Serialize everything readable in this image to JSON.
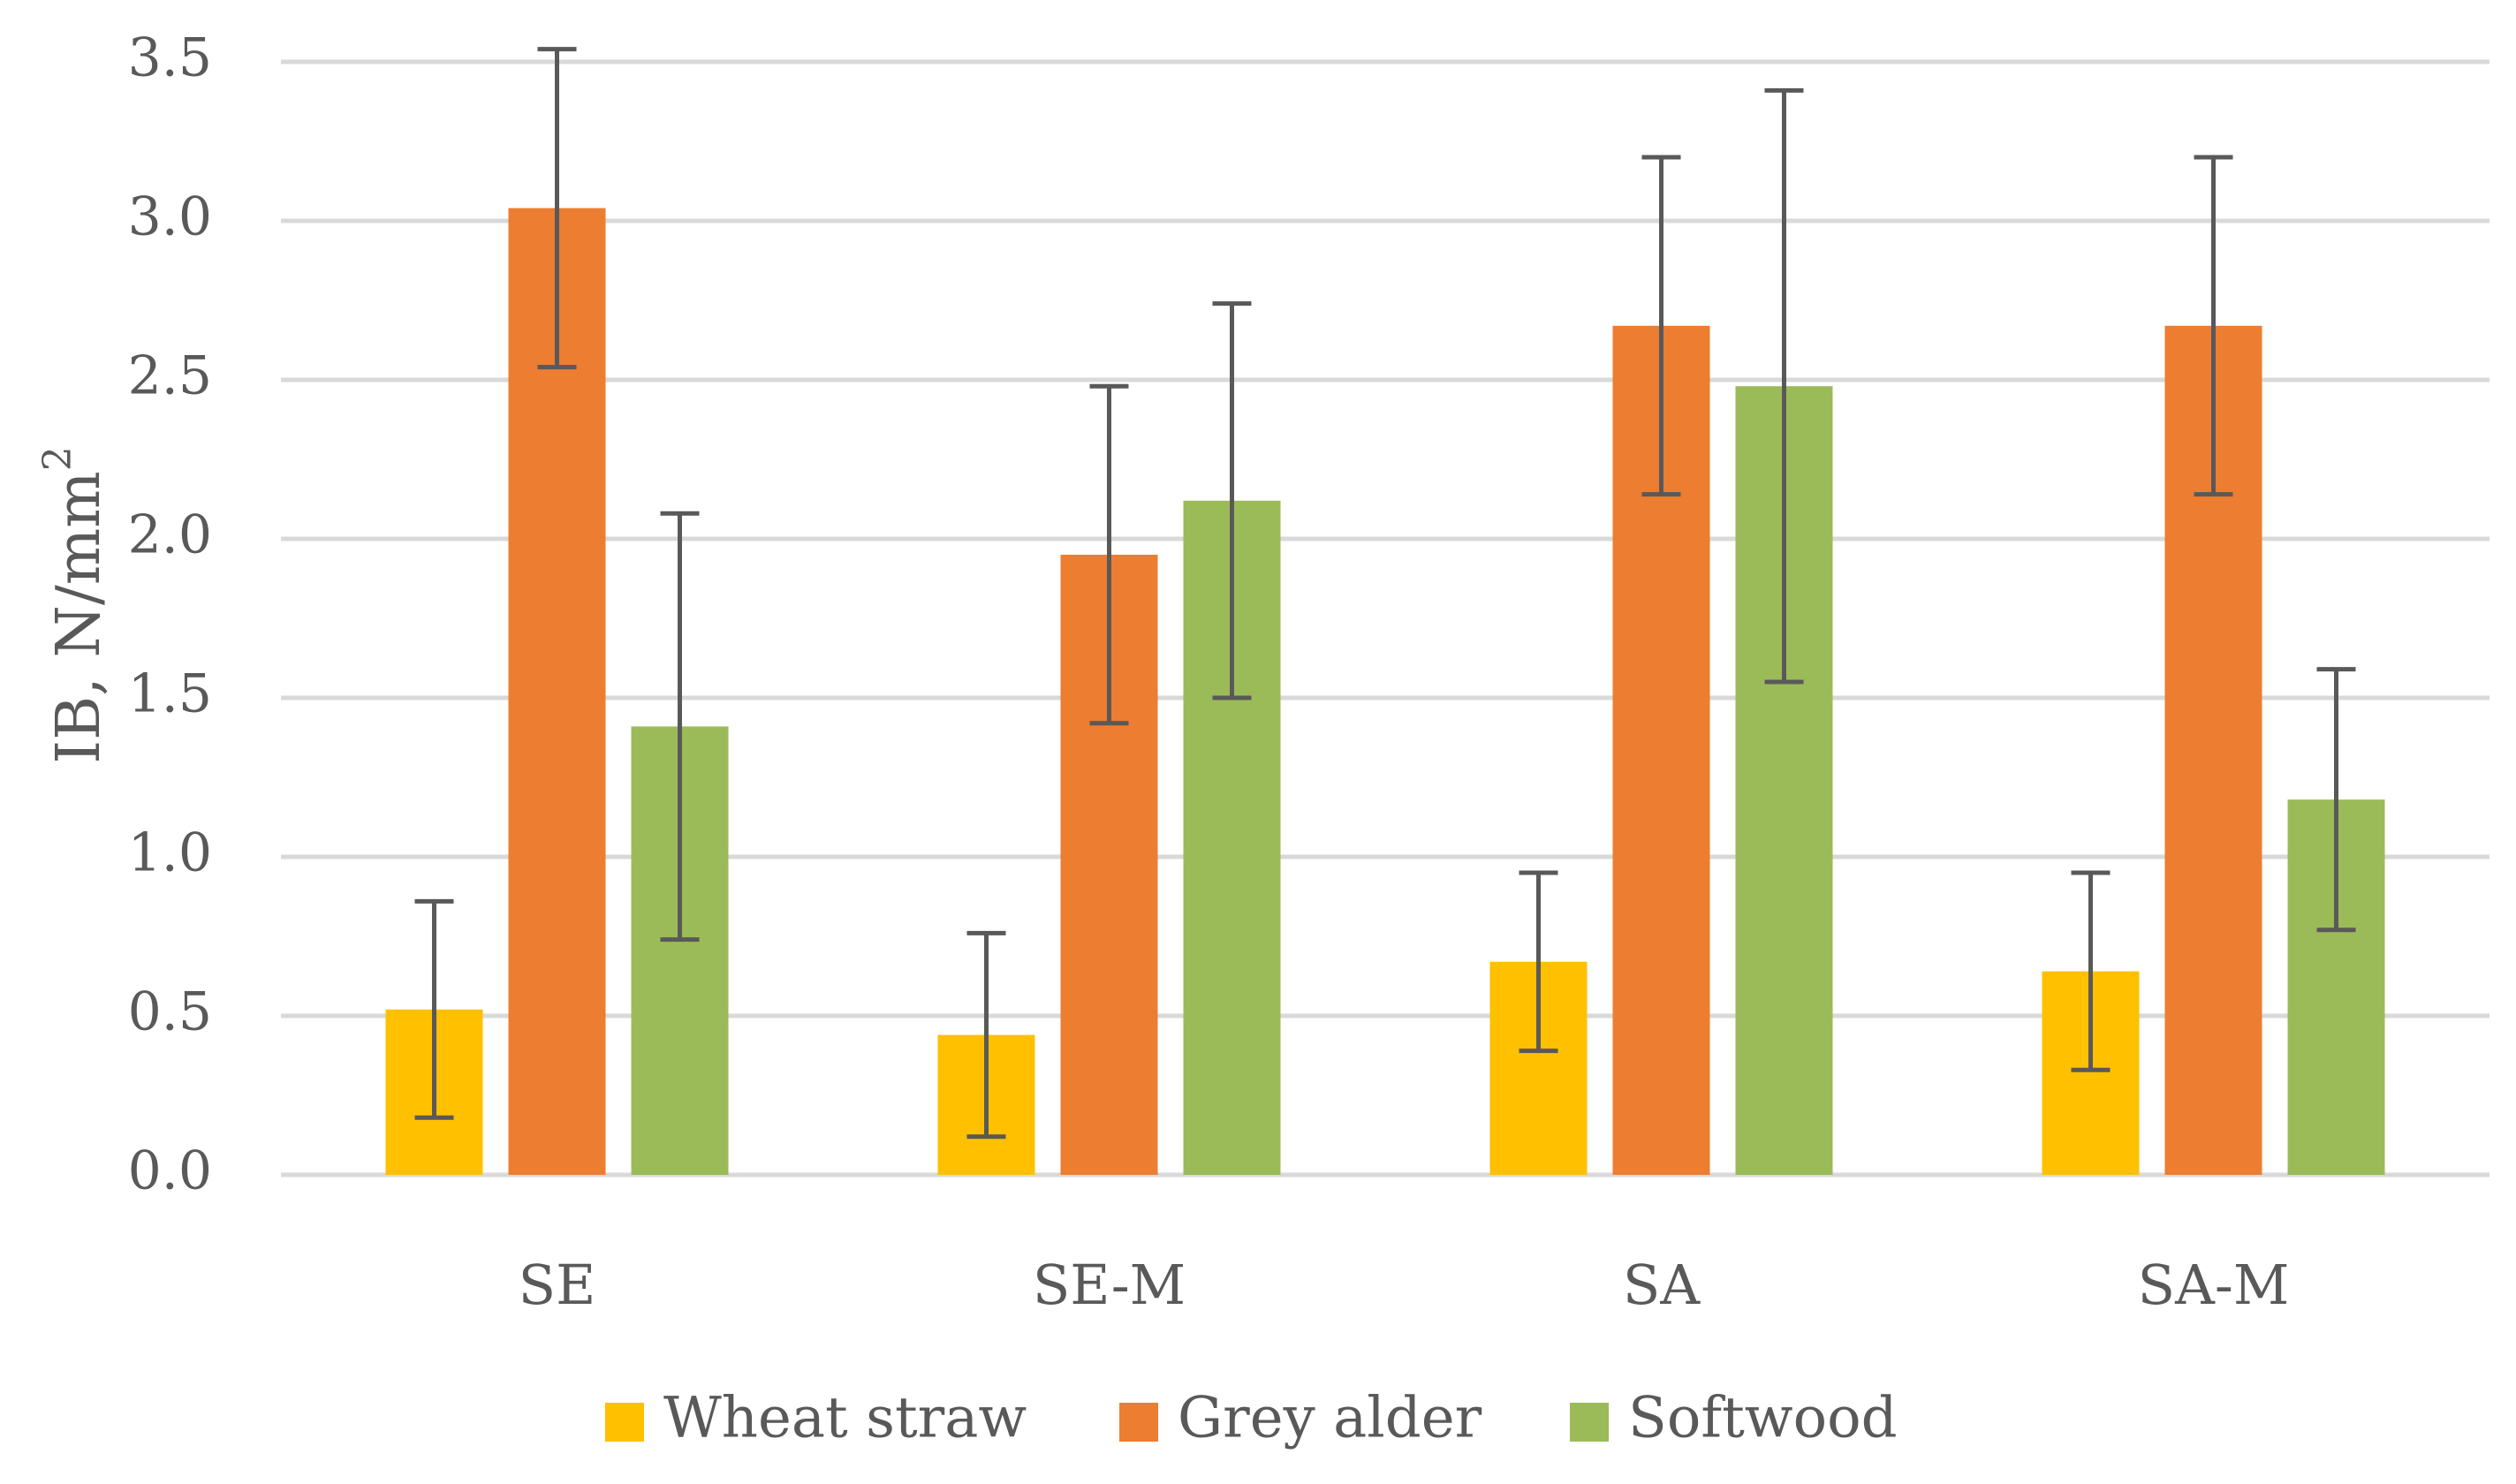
{
  "chart_data": {
    "type": "bar",
    "title": "",
    "xlabel": "",
    "ylabel": "IB, N/mm",
    "ylabel_superscript": "2",
    "ylim": [
      0,
      3.5
    ],
    "yticks": [
      "0.0",
      "0.5",
      "1.0",
      "1.5",
      "2.0",
      "2.5",
      "3.0",
      "3.5"
    ],
    "ytick_values": [
      0,
      0.5,
      1.0,
      1.5,
      2.0,
      2.5,
      3.0,
      3.5
    ],
    "grid": true,
    "legend_position": "bottom",
    "categories": [
      "SE",
      "SE-M",
      "SA",
      "SA-M"
    ],
    "series": [
      {
        "name": "Wheat straw",
        "color": "#FFC000",
        "values": [
          0.52,
          0.44,
          0.67,
          0.64
        ],
        "errors": [
          0.34,
          0.32,
          0.28,
          0.31
        ]
      },
      {
        "name": "Grey alder",
        "color": "#ED7D31",
        "values": [
          3.04,
          1.95,
          2.67,
          2.67
        ],
        "errors": [
          0.5,
          0.53,
          0.53,
          0.53
        ]
      },
      {
        "name": "Softwood",
        "color": "#9BBB59",
        "values": [
          1.41,
          2.12,
          2.48,
          1.18
        ],
        "errors": [
          0.67,
          0.62,
          0.93,
          0.41
        ]
      }
    ],
    "colors": {
      "grid": "#D9D9D9",
      "error_bar": "#595959",
      "text": "#595959"
    }
  }
}
